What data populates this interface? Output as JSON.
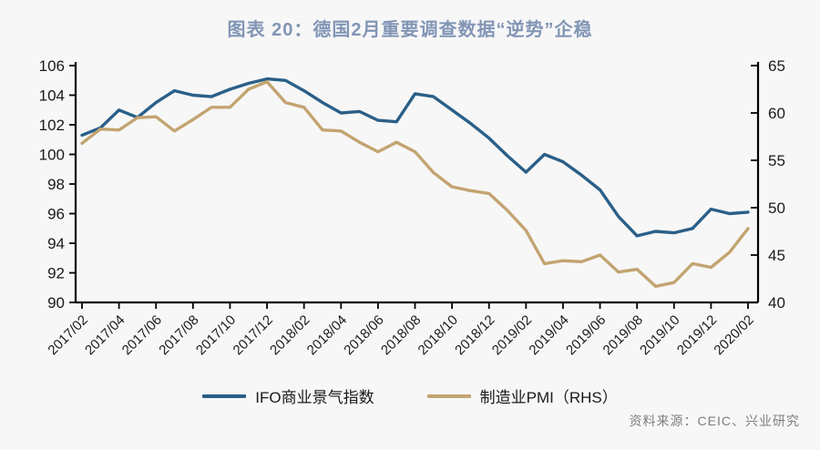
{
  "title": "图表 20：德国2月重要调查数据“逆势”企稳",
  "source": "资料来源：CEIC、兴业研究",
  "colors": {
    "ifo_line": "#2a5f88",
    "pmi_line": "#c3a471",
    "title_text": "#8295b5",
    "axis_line": "#000000",
    "tick_text": "#1a1a1a",
    "source_text": "#7f7f7f",
    "background": "#f7f7f7"
  },
  "chart_data": {
    "type": "line",
    "x": [
      "2017/02",
      "2017/03",
      "2017/04",
      "2017/05",
      "2017/06",
      "2017/07",
      "2017/08",
      "2017/09",
      "2017/10",
      "2017/11",
      "2017/12",
      "2018/01",
      "2018/02",
      "2018/03",
      "2018/04",
      "2018/05",
      "2018/06",
      "2018/07",
      "2018/08",
      "2018/09",
      "2018/10",
      "2018/11",
      "2018/12",
      "2019/01",
      "2019/02",
      "2019/03",
      "2019/04",
      "2019/05",
      "2019/06",
      "2019/07",
      "2019/08",
      "2019/09",
      "2019/10",
      "2019/11",
      "2019/12",
      "2020/01",
      "2020/02"
    ],
    "x_tick_labels": [
      "2017/02",
      "2017/04",
      "2017/06",
      "2017/08",
      "2017/10",
      "2017/12",
      "2018/02",
      "2018/04",
      "2018/06",
      "2018/08",
      "2018/10",
      "2018/12",
      "2019/02",
      "2019/04",
      "2019/06",
      "2019/08",
      "2019/10",
      "2019/12",
      "2020/02"
    ],
    "series": [
      {
        "name": "IFO商业景气指数",
        "axis": "left",
        "color": "#2a5f88",
        "values": [
          101.3,
          101.8,
          103.0,
          102.5,
          103.5,
          104.3,
          104.0,
          103.9,
          104.4,
          104.8,
          105.1,
          105.0,
          104.3,
          103.5,
          102.8,
          102.9,
          102.3,
          102.2,
          104.1,
          103.9,
          103.0,
          102.1,
          101.1,
          99.9,
          98.8,
          100.0,
          99.5,
          98.6,
          97.6,
          95.8,
          94.5,
          94.8,
          94.7,
          95.0,
          96.3,
          96.0,
          96.1
        ]
      },
      {
        "name": "制造业PMI（RHS）",
        "axis": "right",
        "color": "#c3a471",
        "values": [
          56.8,
          58.3,
          58.2,
          59.5,
          59.6,
          58.1,
          59.3,
          60.6,
          60.6,
          62.5,
          63.3,
          61.1,
          60.6,
          58.2,
          58.1,
          56.9,
          55.9,
          56.9,
          55.9,
          53.7,
          52.2,
          51.8,
          51.5,
          49.7,
          47.6,
          44.1,
          44.4,
          44.3,
          45.0,
          43.2,
          43.5,
          41.7,
          42.1,
          44.1,
          43.7,
          45.3,
          47.8
        ]
      }
    ],
    "left_axis": {
      "min": 90,
      "max": 106,
      "ticks": [
        106,
        104,
        102,
        100,
        98,
        96,
        94,
        92,
        90
      ]
    },
    "right_axis": {
      "min": 40,
      "max": 65,
      "ticks": [
        65,
        60,
        55,
        50,
        45,
        40
      ]
    },
    "grid": false,
    "legend_position": "bottom",
    "title": "图表 20：德国2月重要调查数据“逆势”企稳"
  }
}
